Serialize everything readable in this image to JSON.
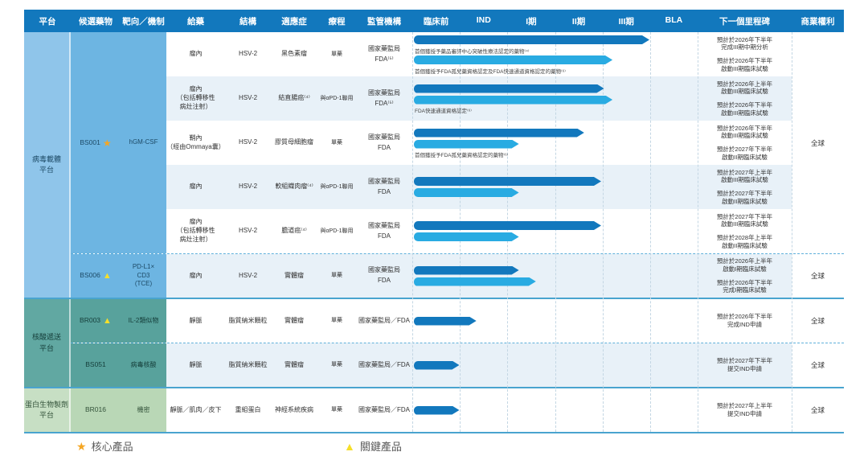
{
  "columns": {
    "platform": "平台",
    "candidate": "候選藥物",
    "target": "靶向／機制",
    "dosing": "給藥",
    "structure": "結構",
    "indication": "適應症",
    "regimen": "療程",
    "regulator": "監管機構",
    "phases": [
      "臨床前",
      "IND",
      "I期",
      "II期",
      "III期",
      "BLA"
    ],
    "milestone": "下一個里程碑",
    "commercial": "商業權利"
  },
  "colors": {
    "header_bg": "#1278bd",
    "bar_dark": "#1278bd",
    "bar_light": "#29abe2",
    "stripe": "#e8f1f8",
    "separator": "#49a4cf",
    "grid_dash": "#c3d6e3",
    "star": "#f5a623",
    "triangle": "#f6df2a"
  },
  "platforms": [
    {
      "name": "病毒載體\n平台",
      "cell_bg": "#8fc5ea",
      "block_bg": "#6db5e2",
      "text_color": "#1d4a66",
      "groups": [
        {
          "candidate": "BS001",
          "marker": "star",
          "target": "hGM-CSF",
          "commercial": "全球",
          "rows": [
            {
              "dosing": "瘤內",
              "structure": "HSV-2",
              "indication": "黑色素瘤",
              "regimen": "單藥",
              "regulator": "國家藥監局\nFDA⁽⁵⁾",
              "shaded": false,
              "bars": [
                {
                  "tone": "dark",
                  "pct": 83,
                  "note": "首個獲授予藥品審評中心突破性療法認定的藥物⁽⁴⁾"
                },
                {
                  "tone": "light",
                  "pct": 70,
                  "note": "首個獲授予FDA孤兒藥資格認定及FDA快速通道資格認定的藥物⁽⁶⁾"
                }
              ],
              "milestones": [
                "預計於2026年下半年\n完成III期中期分析",
                "預計於2026年下半年\n啟動III期臨床試驗"
              ]
            },
            {
              "dosing": "瘤內\n（包括轉移性\n病灶注射）",
              "structure": "HSV-2",
              "indication": "結直腸癌⁽⁴⁾",
              "regimen": "與αPD-1聯用",
              "regulator": "國家藥監局\nFDA⁽⁵⁾",
              "shaded": true,
              "bars": [
                {
                  "tone": "dark",
                  "pct": 67
                },
                {
                  "tone": "light",
                  "pct": 70,
                  "note": "FDA快速通道資格認定⁽⁶⁾"
                }
              ],
              "milestones": [
                "預計於2026年上半年\n啟動III期臨床試驗",
                "預計於2026年下半年\n啟動III期臨床試驗"
              ]
            },
            {
              "dosing": "鞘內\n（經由Ommaya囊）",
              "structure": "HSV-2",
              "indication": "膠質母細胞瘤",
              "regimen": "單藥",
              "regulator": "國家藥監局\nFDA",
              "shaded": false,
              "bars": [
                {
                  "tone": "dark",
                  "pct": 60
                },
                {
                  "tone": "light",
                  "pct": 37,
                  "note": "首個獲授予FDA孤兒藥資格認定的藥物⁽⁶⁾"
                }
              ],
              "milestones": [
                "預計於2026年下半年\n啟動III期臨床試驗",
                "預計於2027年下半年\n啟動II期臨床試驗"
              ]
            },
            {
              "dosing": "瘤內",
              "structure": "HSV-2",
              "indication": "軟組織肉瘤⁽⁴⁾",
              "regimen": "與αPD-1聯用",
              "regulator": "國家藥監局\nFDA",
              "shaded": true,
              "bars": [
                {
                  "tone": "dark",
                  "pct": 66
                },
                {
                  "tone": "light",
                  "pct": 37
                }
              ],
              "milestones": [
                "預計於2027年上半年\n啟動III期臨床試驗",
                "預計於2027年下半年\n啟動II期臨床試驗"
              ]
            },
            {
              "dosing": "瘤內\n（包括轉移性\n病灶注射）",
              "structure": "HSV-2",
              "indication": "膽道癌⁽⁴⁾",
              "regimen": "與αPD-1聯用",
              "regulator": "國家藥監局\nFDA",
              "shaded": false,
              "bars": [
                {
                  "tone": "dark",
                  "pct": 66
                },
                {
                  "tone": "light",
                  "pct": 37
                }
              ],
              "milestones": [
                "預計於2027年下半年\n啟動III期臨床試驗",
                "預計於2028年上半年\n啟動II期臨床試驗"
              ]
            }
          ]
        },
        {
          "candidate": "BS006",
          "marker": "triangle",
          "target": "PD-L1×\nCD3\n(TCE)",
          "commercial": "全球",
          "dashed_top": true,
          "rows": [
            {
              "dosing": "瘤內",
              "structure": "HSV-2",
              "indication": "實體瘤",
              "regimen": "單藥",
              "regulator": "國家藥監局\nFDA",
              "shaded": true,
              "bars": [
                {
                  "tone": "dark",
                  "pct": 37
                },
                {
                  "tone": "light",
                  "pct": 43
                }
              ],
              "milestones": [
                "預計於2026年上半年\n啟動I期臨床試驗",
                "預計於2026年下半年\n完成I期臨床試驗"
              ]
            }
          ]
        }
      ]
    },
    {
      "name": "核酸遞送\n平台",
      "cell_bg": "#61a8a2",
      "block_bg": "#58a29c",
      "text_color": "#153e3a",
      "groups": [
        {
          "candidate": "BR003",
          "marker": "triangle",
          "target": "IL-2類似物",
          "commercial": "全球",
          "rows": [
            {
              "dosing": "靜脈",
              "structure": "脂質納米顆粒",
              "indication": "實體瘤",
              "regimen": "單藥",
              "regulator": "國家藥監局／FDA",
              "shaded": false,
              "bars": [
                {
                  "tone": "dark",
                  "pct": 22
                }
              ],
              "milestones": [
                "預計於2026年下半年\n完成IND申請"
              ]
            }
          ]
        },
        {
          "candidate": "BS051",
          "marker": null,
          "target": "病毒核酸",
          "commercial": "全球",
          "dashed_top": true,
          "rows": [
            {
              "dosing": "靜脈",
              "structure": "脂質納米顆粒",
              "indication": "實體瘤",
              "regimen": "單藥",
              "regulator": "國家藥監局／FDA",
              "shaded": true,
              "bars": [
                {
                  "tone": "dark",
                  "pct": 16
                }
              ],
              "milestones": [
                "預計於2027年下半年\n提交IND申請"
              ]
            }
          ]
        }
      ]
    },
    {
      "name": "蛋白生物製劑\n平台",
      "cell_bg": "#c7dfc4",
      "block_bg": "#b9d7b6",
      "text_color": "#33523a",
      "groups": [
        {
          "candidate": "BR016",
          "marker": null,
          "target": "機密",
          "commercial": "全球",
          "rows": [
            {
              "dosing": "靜脈／肌肉／皮下",
              "structure": "重組蛋白",
              "indication": "神經系統疾病",
              "regimen": "單藥",
              "regulator": "國家藥監局／FDA",
              "shaded": false,
              "bars": [
                {
                  "tone": "dark",
                  "pct": 16
                }
              ],
              "milestones": [
                "預計於2027年上半年\n提交IND申請"
              ]
            }
          ]
        }
      ]
    }
  ],
  "legend": [
    {
      "symbol": "star",
      "label": "核心產品"
    },
    {
      "symbol": "triangle",
      "label": "關鍵產品"
    }
  ],
  "chart_data": {
    "type": "bar",
    "orientation": "horizontal",
    "phase_axis": [
      "臨床前",
      "IND",
      "I期",
      "II期",
      "III期",
      "BLA"
    ],
    "axis_scale": [
      0,
      6
    ],
    "bars": [
      {
        "candidate": "BS001",
        "indication": "黑色素瘤",
        "track": "國家藥監局",
        "value": 4.98
      },
      {
        "candidate": "BS001",
        "indication": "黑色素瘤",
        "track": "FDA",
        "value": 4.2
      },
      {
        "candidate": "BS001",
        "indication": "結直腸癌",
        "track": "國家藥監局",
        "value": 4.02
      },
      {
        "candidate": "BS001",
        "indication": "結直腸癌",
        "track": "FDA",
        "value": 4.2
      },
      {
        "candidate": "BS001",
        "indication": "膠質母細胞瘤",
        "track": "國家藥監局",
        "value": 3.6
      },
      {
        "candidate": "BS001",
        "indication": "膠質母細胞瘤",
        "track": "FDA",
        "value": 2.22
      },
      {
        "candidate": "BS001",
        "indication": "軟組織肉瘤",
        "track": "國家藥監局",
        "value": 3.96
      },
      {
        "candidate": "BS001",
        "indication": "軟組織肉瘤",
        "track": "FDA",
        "value": 2.22
      },
      {
        "candidate": "BS001",
        "indication": "膽道癌",
        "track": "國家藥監局",
        "value": 3.96
      },
      {
        "candidate": "BS001",
        "indication": "膽道癌",
        "track": "FDA",
        "value": 2.22
      },
      {
        "candidate": "BS006",
        "indication": "實體瘤",
        "track": "國家藥監局",
        "value": 2.22
      },
      {
        "candidate": "BS006",
        "indication": "實體瘤",
        "track": "FDA",
        "value": 2.58
      },
      {
        "candidate": "BR003",
        "indication": "實體瘤",
        "track": "國家藥監局／FDA",
        "value": 1.32
      },
      {
        "candidate": "BS051",
        "indication": "實體瘤",
        "track": "國家藥監局／FDA",
        "value": 0.96
      },
      {
        "candidate": "BR016",
        "indication": "神經系統疾病",
        "track": "國家藥監局／FDA",
        "value": 0.96
      }
    ]
  }
}
